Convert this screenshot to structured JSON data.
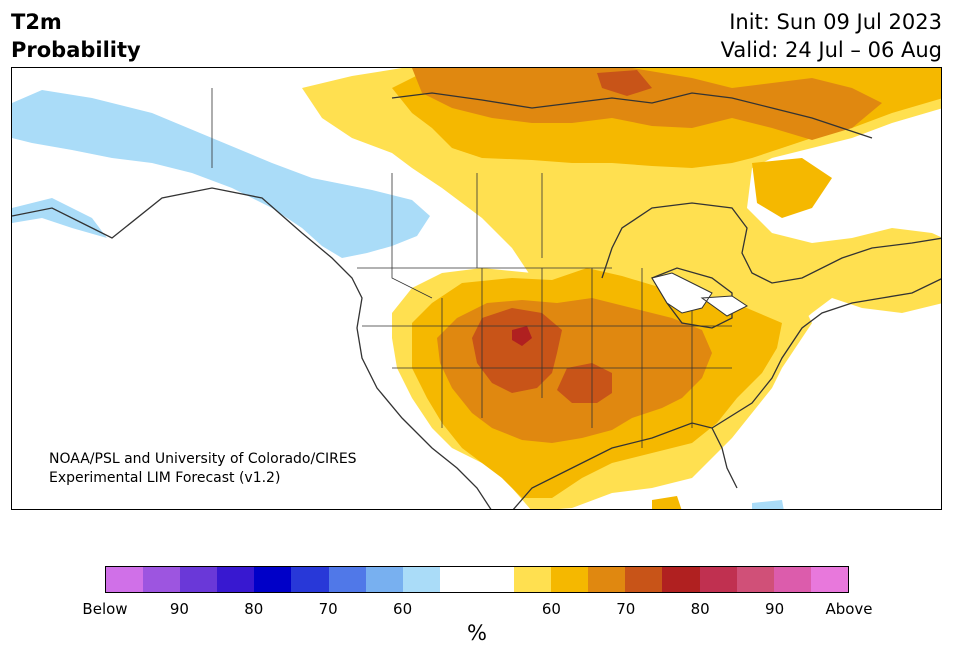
{
  "title": {
    "line1": "T2m",
    "line2": "Probability"
  },
  "dates": {
    "init": "Init: Sun 09 Jul 2023",
    "valid": "Valid: 24 Jul – 06 Aug"
  },
  "credit": {
    "line1": "NOAA/PSL and University of Colorado/CIRES",
    "line2": "Experimental LIM Forecast (v1.2)"
  },
  "colorbar": {
    "colors": [
      "#d070e8",
      "#9d55e0",
      "#6a38d8",
      "#3818d0",
      "#0000c8",
      "#2838d8",
      "#5078e8",
      "#78b0f0",
      "#aadcf8",
      "#ffffff",
      "#ffffff",
      "#ffe050",
      "#f5b800",
      "#e08810",
      "#c85418",
      "#b02020",
      "#c03050",
      "#d05078",
      "#dc5cac",
      "#e878dc"
    ],
    "ticks": [
      "Below",
      "90",
      "80",
      "70",
      "60",
      "60",
      "70",
      "80",
      "90",
      "Above"
    ],
    "unit": "%"
  },
  "legend_colors": {
    "light_blue": "#aadcf8",
    "yellow": "#ffe050",
    "gold": "#f5b800",
    "orange": "#e08810",
    "dark_orange": "#c85418",
    "red": "#b02020"
  }
}
